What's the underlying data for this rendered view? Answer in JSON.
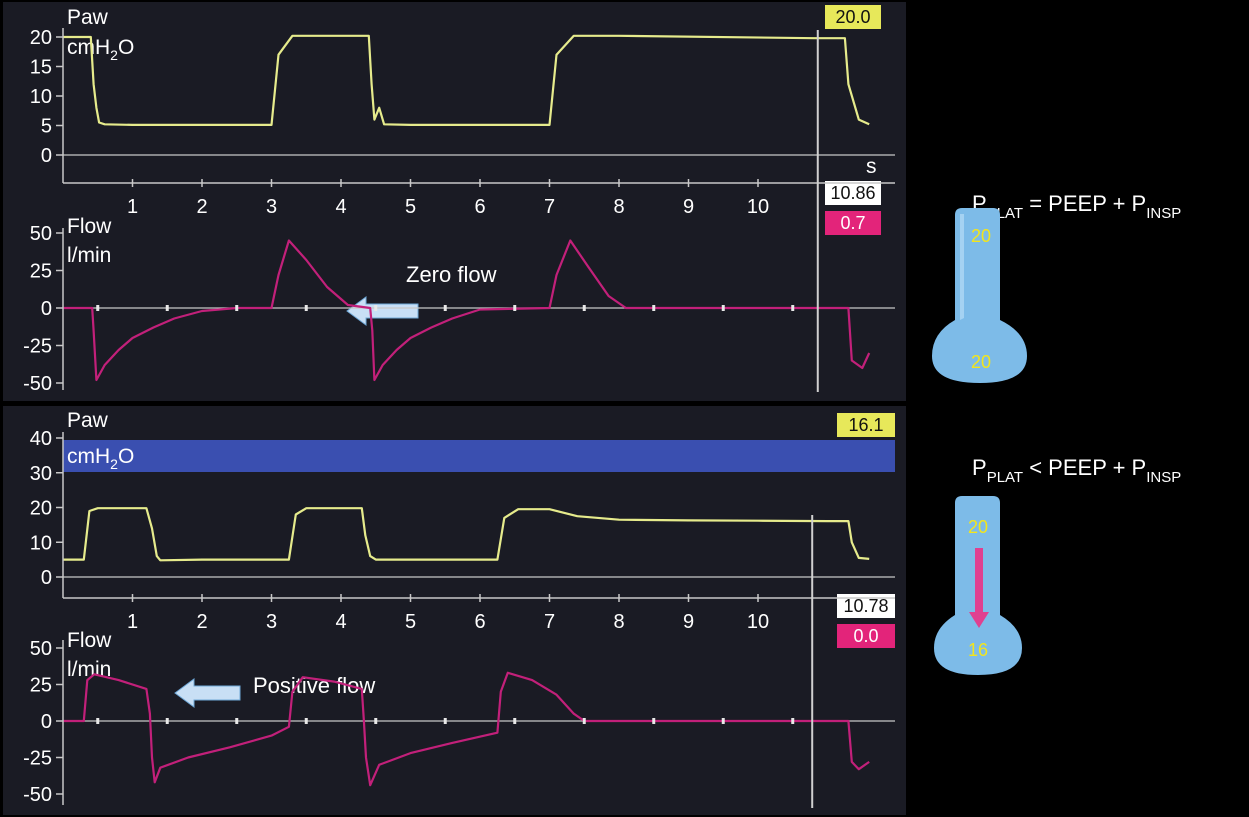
{
  "colors": {
    "panel_bg": "#1a1b24",
    "pressure_trace": "#e6eb8c",
    "flow_trace": "#c2207a",
    "axis": "#c8c8c8",
    "pressure_badge": "#e7e85a",
    "time_badge": "#ffffff",
    "flow_badge": "#e3247a",
    "alarm_band": "#3a4fb0",
    "bulb": "#7dbbe8",
    "bulb_value": "#f3e51c",
    "arrow": "#e04090"
  },
  "top_panel": {
    "pressure": {
      "label_line1": "Paw",
      "unit_main": "cmH",
      "unit_sub": "2",
      "unit_end": "O",
      "badge": "20.0",
      "yticks": [
        "20",
        "15",
        "10",
        "5",
        "0"
      ]
    },
    "time_axis": {
      "unit": "s",
      "ticks": [
        "1",
        "2",
        "3",
        "4",
        "5",
        "6",
        "7",
        "8",
        "9",
        "10"
      ],
      "cursor_badge": "10.86"
    },
    "flow": {
      "label_line1": "Flow",
      "label_line2": "l/min",
      "badge": "0.7",
      "yticks": [
        "50",
        "25",
        "0",
        "-25",
        "-50"
      ],
      "annotation": "Zero flow"
    }
  },
  "bottom_panel": {
    "pressure": {
      "label_line1": "Paw",
      "unit_main": "cmH",
      "unit_sub": "2",
      "unit_end": "O",
      "badge": "16.1",
      "yticks": [
        "40",
        "30",
        "20",
        "10",
        "0"
      ]
    },
    "time_axis": {
      "ticks": [
        "1",
        "2",
        "3",
        "4",
        "5",
        "6",
        "7",
        "8",
        "9",
        "10"
      ],
      "cursor_badge": "10.78"
    },
    "flow": {
      "label_line1": "Flow",
      "label_line2": "l/min",
      "badge": "0.0",
      "yticks": [
        "50",
        "25",
        "0",
        "-25",
        "-50"
      ],
      "annotation": "Positive flow"
    }
  },
  "side": {
    "formula1": {
      "p": "P",
      "sub1": "PLAT",
      "mid": " = PEEP + P",
      "sub2": "INSP"
    },
    "formula2": {
      "p": "P",
      "sub1": "PLAT",
      "mid": " < PEEP + P",
      "sub2": "INSP"
    },
    "bulb1_top": "20",
    "bulb1_bottom": "20",
    "bulb2_top": "20",
    "bulb2_bottom": "16"
  },
  "chart_data": [
    {
      "type": "line",
      "title": "",
      "xlabel": "s",
      "ylabel": "Paw cmH2O",
      "xlim": [
        0,
        11.7
      ],
      "ylim": [
        -5,
        22
      ],
      "series": [
        {
          "name": "",
          "x": [
            0,
            0.4,
            0.44,
            0.48,
            0.52,
            0.6,
            1.0,
            3.0,
            3.1,
            3.3,
            3.5,
            4.4,
            4.44,
            4.48,
            4.55,
            4.62,
            5.0,
            7.0,
            7.1,
            7.35,
            8.0,
            10.8,
            11.25,
            11.3,
            11.45,
            11.6
          ],
          "y": [
            20,
            20,
            12,
            8,
            5.5,
            5.2,
            5.1,
            5.1,
            17,
            20.2,
            20.2,
            20.2,
            12,
            6,
            8,
            5.2,
            5.1,
            5.1,
            17,
            20.2,
            20.2,
            19.8,
            19.8,
            12,
            6,
            5.2
          ]
        }
      ],
      "cursor_x": 10.86,
      "cursor_readout": 20.0
    },
    {
      "type": "line",
      "title": "",
      "xlabel": "s",
      "ylabel": "Flow l/min",
      "xlim": [
        0,
        11.7
      ],
      "ylim": [
        -55,
        55
      ],
      "series": [
        {
          "name": "",
          "x": [
            0,
            0.42,
            0.44,
            0.48,
            0.6,
            0.8,
            1.0,
            1.3,
            1.6,
            2.0,
            2.5,
            3.0,
            3.1,
            3.25,
            3.5,
            3.8,
            4.1,
            4.42,
            4.45,
            4.48,
            4.6,
            4.8,
            5.0,
            5.3,
            5.6,
            6.0,
            7.0,
            7.1,
            7.3,
            7.55,
            7.85,
            8.1,
            11.3,
            11.35,
            11.5,
            11.6
          ],
          "y": [
            0,
            0,
            -15,
            -48,
            -38,
            -28,
            -20,
            -13,
            -7,
            -2,
            0,
            0,
            22,
            45,
            32,
            14,
            2,
            0,
            -15,
            -48,
            -38,
            -28,
            -20,
            -13,
            -7,
            -1,
            0,
            22,
            45,
            28,
            8,
            0,
            0,
            -35,
            -40,
            -30
          ]
        }
      ],
      "cursor_x": 10.86,
      "cursor_readout": 0.7,
      "annotations": [
        "Zero flow"
      ]
    },
    {
      "type": "line",
      "title": "",
      "xlabel": "s",
      "ylabel": "Paw cmH2O",
      "xlim": [
        0,
        11.7
      ],
      "ylim": [
        -3,
        45
      ],
      "alarm_band": [
        31,
        40
      ],
      "series": [
        {
          "name": "",
          "x": [
            0,
            0.3,
            0.38,
            0.5,
            1.2,
            1.28,
            1.35,
            1.4,
            2.0,
            3.25,
            3.35,
            3.5,
            4.3,
            4.35,
            4.42,
            4.5,
            5.0,
            6.25,
            6.35,
            6.55,
            7.0,
            7.4,
            8.0,
            9.0,
            10.0,
            11.0,
            11.3,
            11.35,
            11.45,
            11.6
          ],
          "y": [
            5,
            5,
            19,
            19.8,
            19.8,
            14,
            6,
            4.8,
            5,
            5,
            18,
            19.8,
            19.8,
            12,
            6,
            5,
            5,
            5,
            17,
            19.5,
            19.5,
            17.5,
            16.5,
            16.3,
            16.2,
            16.1,
            16.1,
            10,
            5.5,
            5.2
          ]
        }
      ],
      "cursor_x": 10.78,
      "cursor_readout": 16.1
    },
    {
      "type": "line",
      "title": "",
      "xlabel": "s",
      "ylabel": "Flow l/min",
      "xlim": [
        0,
        11.7
      ],
      "ylim": [
        -55,
        55
      ],
      "series": [
        {
          "name": "",
          "x": [
            0,
            0.3,
            0.35,
            0.45,
            0.8,
            1.2,
            1.25,
            1.28,
            1.32,
            1.4,
            1.8,
            2.4,
            3.0,
            3.25,
            3.3,
            3.45,
            3.9,
            4.3,
            4.33,
            4.36,
            4.42,
            4.55,
            5.0,
            5.6,
            6.25,
            6.3,
            6.4,
            6.75,
            7.1,
            7.35,
            7.5,
            7.6,
            11.3,
            11.35,
            11.45,
            11.6
          ],
          "y": [
            0,
            0,
            28,
            32,
            28,
            22,
            5,
            -25,
            -42,
            -32,
            -25,
            -18,
            -10,
            -4,
            20,
            30,
            27,
            22,
            0,
            -25,
            -44,
            -30,
            -22,
            -15,
            -8,
            20,
            33,
            28,
            18,
            5,
            0,
            0,
            0,
            -28,
            -33,
            -28
          ]
        }
      ],
      "cursor_x": 10.78,
      "cursor_readout": 0.0,
      "annotations": [
        "Positive flow"
      ]
    }
  ]
}
